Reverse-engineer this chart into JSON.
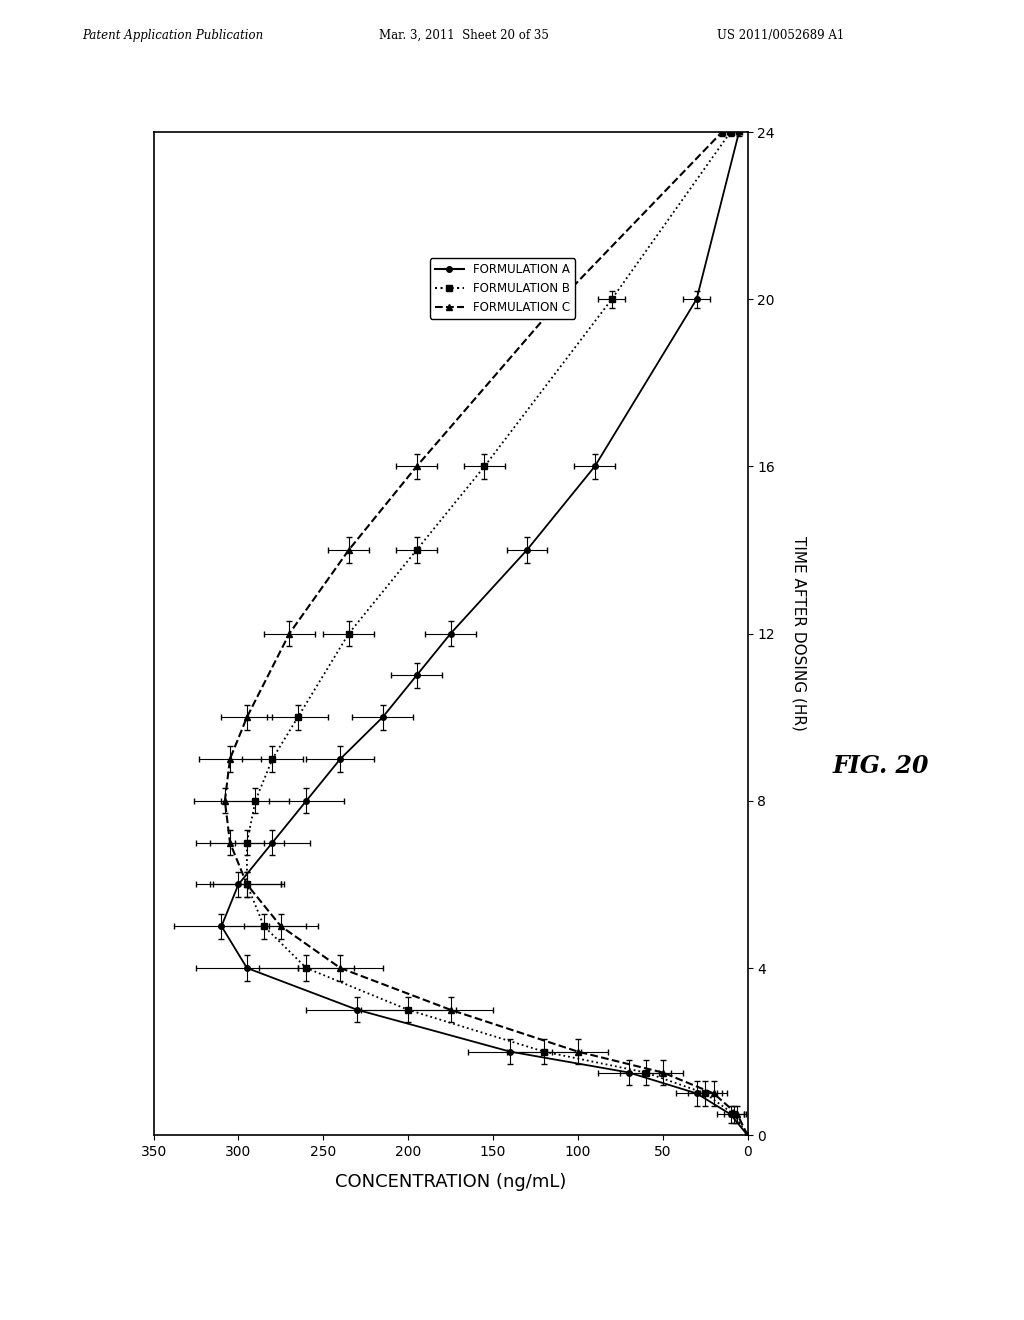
{
  "y_label": "TIME AFTER DOSING (HR)",
  "x_label": "CONCENTRATION (ng/mL)",
  "xlim": [
    350,
    0
  ],
  "ylim": [
    0,
    24
  ],
  "xticks": [
    350,
    300,
    250,
    200,
    150,
    100,
    50,
    0
  ],
  "xticklabels": [
    "350",
    "300",
    "250",
    "200",
    "150",
    "100",
    "50",
    "0"
  ],
  "yticks": [
    0,
    4,
    8,
    12,
    16,
    20,
    24
  ],
  "formulation_A": {
    "label": "FORMULATION A",
    "linestyle": "-",
    "marker": "o",
    "time": [
      0,
      0.5,
      1.0,
      1.5,
      2.0,
      3.0,
      4.0,
      5.0,
      6.0,
      7.0,
      8.0,
      9.0,
      10.0,
      11.0,
      12.0,
      14.0,
      16.0,
      20.0,
      24.0
    ],
    "conc": [
      0,
      10,
      30,
      70,
      140,
      230,
      295,
      310,
      300,
      280,
      260,
      240,
      215,
      195,
      175,
      130,
      90,
      30,
      5
    ],
    "xerr": [
      0,
      8,
      12,
      18,
      25,
      30,
      30,
      28,
      25,
      22,
      22,
      20,
      18,
      15,
      15,
      12,
      12,
      8,
      2
    ],
    "yerr": [
      0,
      0.2,
      0.3,
      0.3,
      0.3,
      0.3,
      0.3,
      0.3,
      0.3,
      0.3,
      0.3,
      0.3,
      0.3,
      0.3,
      0.3,
      0.3,
      0.3,
      0.2,
      0.1
    ]
  },
  "formulation_B": {
    "label": "FORMULATION B",
    "linestyle": ":",
    "marker": "s",
    "time": [
      0,
      0.5,
      1.0,
      1.5,
      2.0,
      3.0,
      4.0,
      5.0,
      6.0,
      7.0,
      8.0,
      9.0,
      10.0,
      12.0,
      14.0,
      16.0,
      20.0,
      24.0
    ],
    "conc": [
      0,
      8,
      25,
      60,
      120,
      200,
      260,
      285,
      295,
      295,
      290,
      280,
      265,
      235,
      195,
      155,
      80,
      10
    ],
    "xerr": [
      0,
      6,
      10,
      15,
      22,
      28,
      28,
      25,
      22,
      22,
      20,
      18,
      18,
      15,
      12,
      12,
      8,
      2
    ],
    "yerr": [
      0,
      0.2,
      0.3,
      0.3,
      0.3,
      0.3,
      0.3,
      0.3,
      0.3,
      0.3,
      0.3,
      0.3,
      0.3,
      0.3,
      0.3,
      0.3,
      0.2,
      0.1
    ]
  },
  "formulation_C": {
    "label": "FORMULATION C",
    "linestyle": "--",
    "marker": "^",
    "time": [
      0,
      0.5,
      1.0,
      1.5,
      2.0,
      3.0,
      4.0,
      5.0,
      6.0,
      7.0,
      8.0,
      9.0,
      10.0,
      12.0,
      14.0,
      16.0,
      20.0,
      24.0
    ],
    "conc": [
      0,
      6,
      20,
      50,
      100,
      175,
      240,
      275,
      295,
      305,
      308,
      305,
      295,
      270,
      235,
      195,
      110,
      15
    ],
    "xerr": [
      0,
      5,
      8,
      12,
      18,
      25,
      25,
      22,
      20,
      20,
      18,
      18,
      15,
      15,
      12,
      12,
      8,
      2
    ],
    "yerr": [
      0,
      0.2,
      0.3,
      0.3,
      0.3,
      0.3,
      0.3,
      0.3,
      0.3,
      0.3,
      0.3,
      0.3,
      0.3,
      0.3,
      0.3,
      0.3,
      0.2,
      0.1
    ]
  }
}
